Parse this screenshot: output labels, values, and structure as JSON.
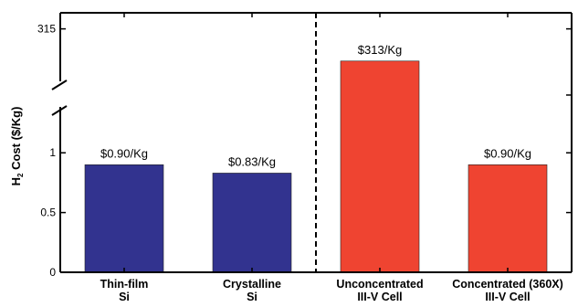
{
  "chart_data": {
    "type": "bar",
    "title": "",
    "xlabel": "",
    "ylabel": "H₂ Cost ($/Kg)",
    "ylabel_parts": {
      "base": "H",
      "sub": "2",
      "rest": " Cost ($/Kg)"
    },
    "categories": [
      [
        "Thin-film",
        "Si"
      ],
      [
        "Crystalline",
        "Si"
      ],
      [
        "Unconcentrated",
        "III-V Cell"
      ],
      [
        "Concentrated (360X)",
        "III-V Cell"
      ]
    ],
    "values": [
      0.9,
      0.83,
      313,
      0.9
    ],
    "data_labels": [
      "$0.90/Kg",
      "$0.83/Kg",
      "$313/Kg",
      "$0.90/Kg"
    ],
    "colors": [
      "#32338f",
      "#32338f",
      "#ef4431",
      "#ef4431"
    ],
    "y_axis": {
      "broken": true,
      "lower_range": [
        0,
        1.3
      ],
      "upper_range": [
        311,
        316
      ],
      "ticks_lower": [
        0,
        0.5,
        1
      ],
      "tick_labels_lower": [
        "0",
        "0.5",
        "1"
      ],
      "ticks_upper": [
        315
      ],
      "tick_labels_upper": [
        "315"
      ]
    },
    "divider_after_category": 1,
    "grid": false,
    "legend": "none"
  }
}
